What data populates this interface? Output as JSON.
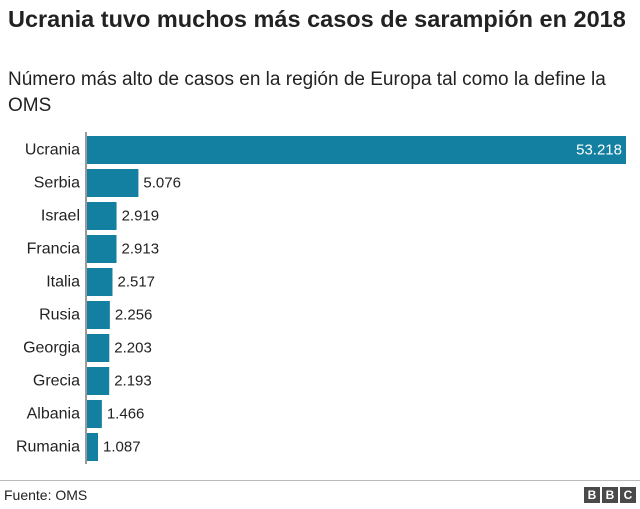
{
  "header": {
    "title": "Ucrania tuvo muchos más casos de sarampión en 2018",
    "subtitle": "Número más alto de casos en la región de Europa tal como la define la OMS"
  },
  "footer": {
    "source": "Fuente: OMS",
    "logo_letters": [
      "B",
      "B",
      "C"
    ],
    "logo_color": "#4a4a4a"
  },
  "chart_data": {
    "type": "bar",
    "orientation": "horizontal",
    "title": "Ucrania tuvo muchos más casos de sarampión en 2018",
    "subtitle": "Número más alto de casos en la región de Europa tal como la define la OMS",
    "categories": [
      "Ucrania",
      "Serbia",
      "Israel",
      "Francia",
      "Italia",
      "Rusia",
      "Georgia",
      "Grecia",
      "Albania",
      "Rumania"
    ],
    "values": [
      53218,
      5076,
      2919,
      2913,
      2517,
      2256,
      2203,
      2193,
      1466,
      1087
    ],
    "value_labels": [
      "53.218",
      "5.076",
      "2.919",
      "2.913",
      "2.517",
      "2.256",
      "2.203",
      "2.193",
      "1.466",
      "1.087"
    ],
    "xlim": [
      0,
      53218
    ],
    "bar_color": "#1380A1",
    "grid": false,
    "legend": "none"
  }
}
